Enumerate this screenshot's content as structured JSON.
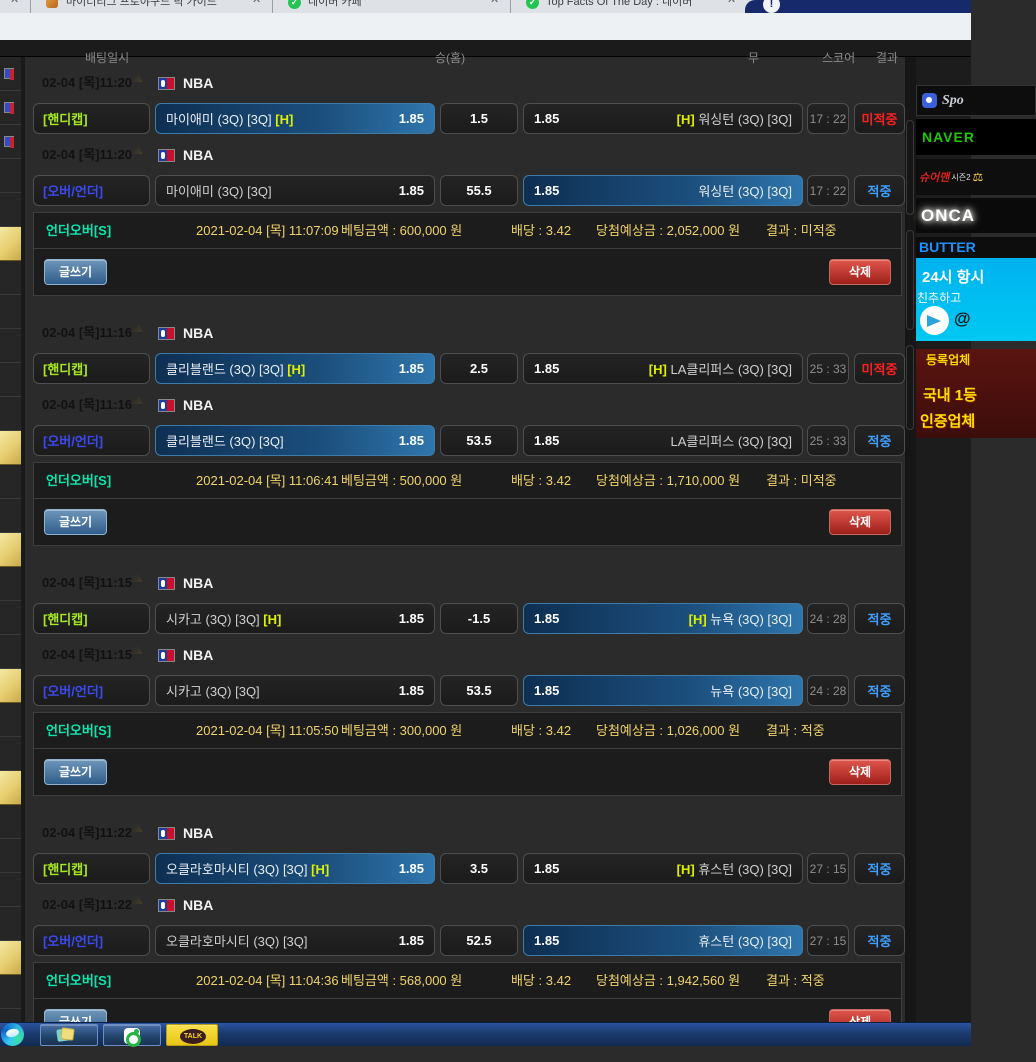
{
  "browser": {
    "tabs": [
      {
        "label": "마이너리그 프로야구드 픽 가이드"
      },
      {
        "label": "네이버 카페"
      },
      {
        "label": "Top Facts Of The Day : 네이버"
      }
    ],
    "close_glyph": "✕",
    "check_glyph": "✓",
    "alert_glyph": "!"
  },
  "table_header": {
    "fragments": [
      "배팅일시",
      "승(홈)",
      "무",
      "스코어",
      "결과"
    ]
  },
  "left_strip": {
    "row_count": 28,
    "gold_rows": [
      5,
      11,
      14,
      18,
      21,
      26
    ],
    "icon_rows": [
      0,
      1,
      2
    ]
  },
  "labels": {
    "write": "글쓰기",
    "delete": "삭제"
  },
  "colors": {
    "win": "#3f9fff",
    "lose": "#ff2020",
    "gold": "#e8cf78",
    "highlight_blue": "#1c4f7d",
    "summary_yellow": "#f0d36a",
    "summary_teal": "#0ce6ae"
  },
  "bets": [
    {
      "time": "02-04 [목]11:20",
      "league": "NBA",
      "rows": [
        {
          "market": "[핸디캡]",
          "market_type": "handicap",
          "home_name": "마이애미 (3Q) [3Q]",
          "home_h": "[H]",
          "home_odds": "1.85",
          "home_selected": true,
          "line": "1.5",
          "away_odds": "1.85",
          "away_h": "[H]",
          "away_name": "워싱턴 (3Q) [3Q]",
          "away_selected": false,
          "score": "17 : 22",
          "result": "미적중",
          "result_state": "lose"
        },
        {
          "market": "[오버/언더]",
          "market_type": "overunder",
          "home_name": "마이애미 (3Q) [3Q]",
          "home_h": "",
          "home_odds": "1.85",
          "home_selected": false,
          "line": "55.5",
          "away_odds": "1.85",
          "away_h": "",
          "away_name": "워싱턴 (3Q) [3Q]",
          "away_selected": true,
          "score": "17 : 22",
          "result": "적중",
          "result_state": "win"
        }
      ],
      "summary": {
        "label": "언더오버[S]",
        "datetime": "2021-02-04 [목] 11:07:09",
        "bet_amount": "베팅금액 : 600,000 원",
        "odds": "배당 : 3.42",
        "expected": "당첨예상금 : 2,052,000 원",
        "result": "결과 : 미적중"
      }
    },
    {
      "time": "02-04 [목]11:16",
      "league": "NBA",
      "rows": [
        {
          "market": "[핸디캡]",
          "market_type": "handicap",
          "home_name": "클리블랜드 (3Q) [3Q]",
          "home_h": "[H]",
          "home_odds": "1.85",
          "home_selected": true,
          "line": "2.5",
          "away_odds": "1.85",
          "away_h": "[H]",
          "away_name": "LA클리퍼스 (3Q) [3Q]",
          "away_selected": false,
          "score": "25 : 33",
          "result": "미적중",
          "result_state": "lose"
        },
        {
          "market": "[오버/언더]",
          "market_type": "overunder",
          "home_name": "클리블랜드 (3Q) [3Q]",
          "home_h": "",
          "home_odds": "1.85",
          "home_selected": true,
          "line": "53.5",
          "away_odds": "1.85",
          "away_h": "",
          "away_name": "LA클리퍼스 (3Q) [3Q]",
          "away_selected": false,
          "score": "25 : 33",
          "result": "적중",
          "result_state": "win"
        }
      ],
      "summary": {
        "label": "언더오버[S]",
        "datetime": "2021-02-04 [목] 11:06:41",
        "bet_amount": "베팅금액 : 500,000 원",
        "odds": "배당 : 3.42",
        "expected": "당첨예상금 : 1,710,000 원",
        "result": "결과 : 미적중"
      }
    },
    {
      "time": "02-04 [목]11:15",
      "league": "NBA",
      "rows": [
        {
          "market": "[핸디캡]",
          "market_type": "handicap",
          "home_name": "시카고 (3Q) [3Q]",
          "home_h": "[H]",
          "home_odds": "1.85",
          "home_selected": false,
          "line": "-1.5",
          "away_odds": "1.85",
          "away_h": "[H]",
          "away_name": "뉴욕 (3Q) [3Q]",
          "away_selected": true,
          "score": "24 : 28",
          "result": "적중",
          "result_state": "win"
        },
        {
          "market": "[오버/언더]",
          "market_type": "overunder",
          "home_name": "시카고 (3Q) [3Q]",
          "home_h": "",
          "home_odds": "1.85",
          "home_selected": false,
          "line": "53.5",
          "away_odds": "1.85",
          "away_h": "",
          "away_name": "뉴욕 (3Q) [3Q]",
          "away_selected": true,
          "score": "24 : 28",
          "result": "적중",
          "result_state": "win"
        }
      ],
      "summary": {
        "label": "언더오버[S]",
        "datetime": "2021-02-04 [목] 11:05:50",
        "bet_amount": "베팅금액 : 300,000 원",
        "odds": "배당 : 3.42",
        "expected": "당첨예상금 : 1,026,000 원",
        "result": "결과 : 적중"
      }
    },
    {
      "time": "02-04 [목]11:22",
      "league": "NBA",
      "rows": [
        {
          "market": "[핸디캡]",
          "market_type": "handicap",
          "home_name": "오클라호마시티 (3Q) [3Q]",
          "home_h": "[H]",
          "home_odds": "1.85",
          "home_selected": true,
          "line": "3.5",
          "away_odds": "1.85",
          "away_h": "[H]",
          "away_name": "휴스턴 (3Q) [3Q]",
          "away_selected": false,
          "score": "27 : 15",
          "result": "적중",
          "result_state": "win"
        },
        {
          "market": "[오버/언더]",
          "market_type": "overunder",
          "home_name": "오클라호마시티 (3Q) [3Q]",
          "home_h": "",
          "home_odds": "1.85",
          "home_selected": false,
          "line": "52.5",
          "away_odds": "1.85",
          "away_h": "",
          "away_name": "휴스턴 (3Q) [3Q]",
          "away_selected": true,
          "score": "27 : 15",
          "result": "적중",
          "result_state": "win"
        }
      ],
      "summary": {
        "label": "언더오버[S]",
        "datetime": "2021-02-04 [목] 11:04:36",
        "bet_amount": "베팅금액 : 568,000 원",
        "odds": "배당 : 3.42",
        "expected": "당첨예상금 : 1,942,560 원",
        "result": "결과 : 적중"
      }
    }
  ],
  "sidebar": {
    "banner_sports": {
      "text": "Spo"
    },
    "banner_naver": {
      "text": "NAVER"
    },
    "banner_sureman": {
      "text": "슈어맨",
      "sub": "시즌2",
      "scales": "⚖"
    },
    "banner_onca": {
      "text": "ONCA"
    },
    "banner_butter": {
      "text": "BUTTER"
    },
    "banner_telegram": {
      "line1": "24시 항시",
      "line2": "친추하고",
      "at": "@"
    },
    "banner_register": {
      "top": "등록업체",
      "line1": "국내 1등",
      "line2": "인증업체"
    }
  },
  "taskbar": {
    "kakao_label": "TALK"
  }
}
